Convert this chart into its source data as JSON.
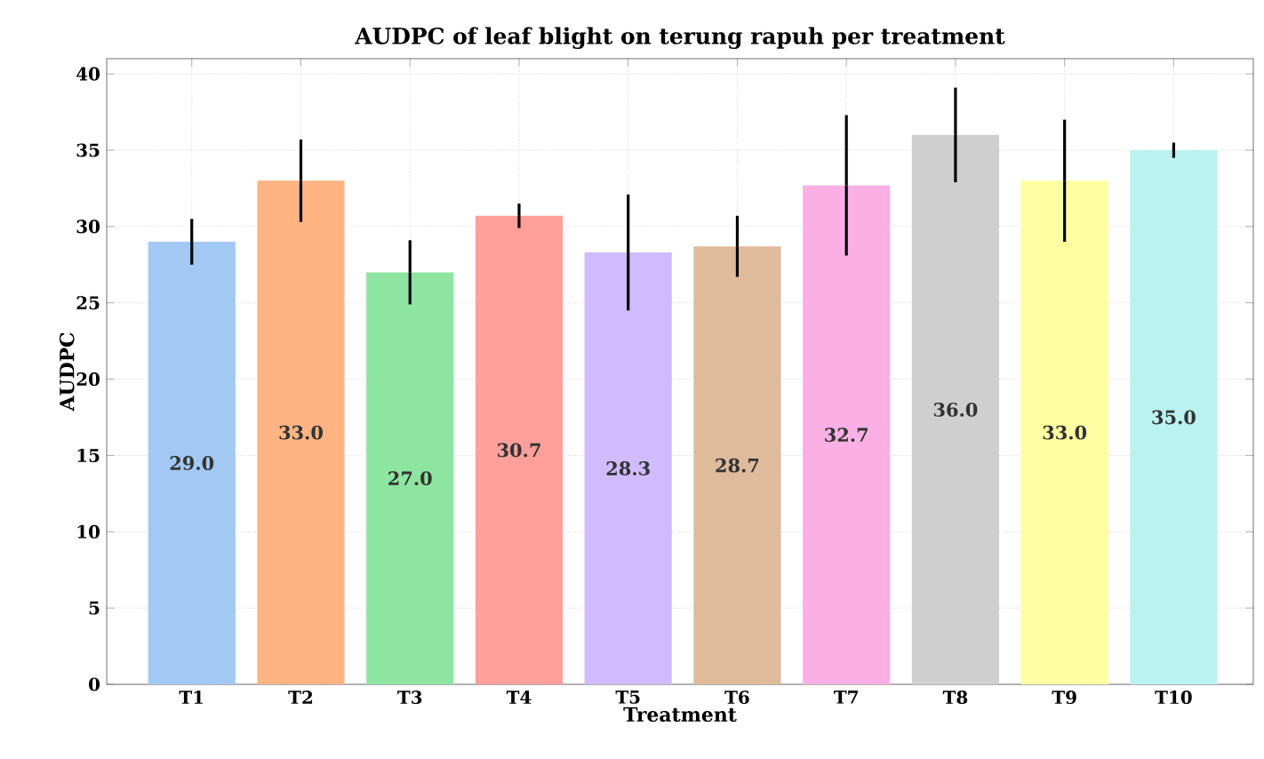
{
  "chart_data": {
    "type": "bar",
    "title": "AUDPC of leaf blight on terung rapuh per treatment",
    "xlabel": "Treatment",
    "ylabel": "AUDPC",
    "categories": [
      "T1",
      "T2",
      "T3",
      "T4",
      "T5",
      "T6",
      "T7",
      "T8",
      "T9",
      "T10"
    ],
    "values": [
      29.0,
      33.0,
      27.0,
      30.7,
      28.3,
      28.7,
      32.7,
      36.0,
      33.0,
      35.0
    ],
    "value_labels": [
      "29.0",
      "33.0",
      "27.0",
      "30.7",
      "28.3",
      "28.7",
      "32.7",
      "36.0",
      "33.0",
      "35.0"
    ],
    "errors": [
      1.5,
      2.7,
      2.1,
      0.8,
      3.8,
      2.0,
      4.6,
      3.1,
      4.0,
      0.5
    ],
    "colors": [
      "#a1c9f4",
      "#ffb482",
      "#8de5a1",
      "#ff9f9b",
      "#d0bbff",
      "#debb9b",
      "#fab0e4",
      "#cfcfcf",
      "#fffea3",
      "#b9f2f0"
    ],
    "ylim": [
      0,
      41
    ],
    "yticks": [
      0,
      5,
      10,
      15,
      20,
      25,
      30,
      35,
      40
    ],
    "grid": true
  }
}
